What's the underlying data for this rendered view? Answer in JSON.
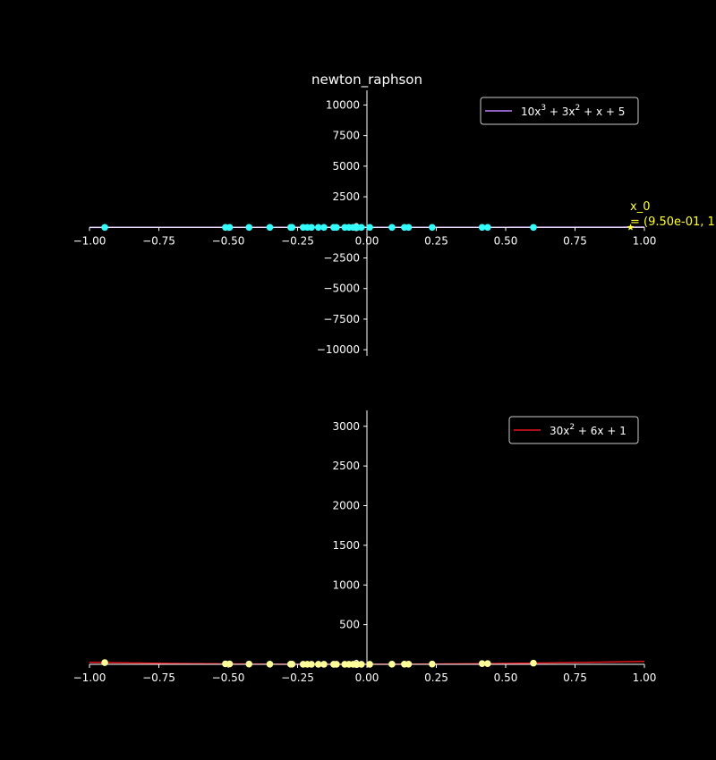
{
  "figure": {
    "title": "newton_raphson",
    "background": "#000000",
    "axis_color": "#ffffff"
  },
  "chart_data": [
    {
      "type": "line",
      "title": "newton_raphson",
      "xlabel": "",
      "ylabel": "",
      "xlim": [
        -1.0,
        1.0
      ],
      "ylim": [
        -10500,
        11200
      ],
      "x_ticks": [
        "−1.00",
        "−0.75",
        "−0.50",
        "−0.25",
        "0.00",
        "0.25",
        "0.50",
        "0.75",
        "1.00"
      ],
      "x_tick_values": [
        -1.0,
        -0.75,
        -0.5,
        -0.25,
        0.0,
        0.25,
        0.5,
        0.75,
        1.0
      ],
      "y_ticks": [
        "−10000",
        "−7500",
        "−5000",
        "−2500",
        "0",
        "2500",
        "5000",
        "7500",
        "10000"
      ],
      "y_tick_values": [
        -10000,
        -7500,
        -5000,
        -2500,
        0,
        2500,
        5000,
        7500,
        10000
      ],
      "legend": {
        "position": "top-right",
        "label_main": "10x",
        "label_tail": " + 3x",
        "label_end": " + x + 5",
        "sup": "3",
        "sup2": "2"
      },
      "series": [
        {
          "name": "10x^3 + 3x^2 + x + 5",
          "color": "#bf80ff",
          "coefficients": [
            10,
            3,
            1,
            5
          ]
        }
      ],
      "iterates": {
        "color": "#33ffff",
        "x": [
          -0.945,
          -0.51,
          -0.495,
          -0.425,
          -0.35,
          -0.275,
          -0.27,
          -0.23,
          -0.215,
          -0.2,
          -0.175,
          -0.155,
          -0.12,
          -0.11,
          -0.08,
          -0.065,
          -0.05,
          -0.035,
          -0.02,
          0.01,
          0.09,
          0.135,
          0.15,
          0.235,
          0.415,
          0.435,
          0.6
        ],
        "y": 0
      },
      "annotation": {
        "marker_x": 0.95,
        "marker_y": 0,
        "line1": "x_0",
        "line2": "= (9.50e-01, 1",
        "color": "#ffff33"
      }
    },
    {
      "type": "line",
      "title": "",
      "xlabel": "",
      "ylabel": "",
      "xlim": [
        -1.0,
        1.0
      ],
      "ylim": [
        0,
        3200
      ],
      "x_ticks": [
        "−1.00",
        "−0.75",
        "−0.50",
        "−0.25",
        "0.00",
        "0.25",
        "0.50",
        "0.75",
        "1.00"
      ],
      "x_tick_values": [
        -1.0,
        -0.75,
        -0.5,
        -0.25,
        0.0,
        0.25,
        0.5,
        0.75,
        1.0
      ],
      "y_ticks": [
        "0",
        "500",
        "1000",
        "1500",
        "2000",
        "2500",
        "3000"
      ],
      "y_tick_values": [
        0,
        500,
        1000,
        1500,
        2000,
        2500,
        3000
      ],
      "legend": {
        "position": "top-right",
        "label_main": "30x",
        "label_tail": " + 6x + 1",
        "sup": "2"
      },
      "series": [
        {
          "name": "30x^2 + 6x + 1",
          "color": "#e8141e",
          "coefficients": [
            30,
            6,
            1
          ]
        }
      ],
      "iterates": {
        "color": "#ffff99",
        "x": [
          -0.945,
          -0.51,
          -0.495,
          -0.425,
          -0.35,
          -0.275,
          -0.27,
          -0.23,
          -0.215,
          -0.2,
          -0.175,
          -0.155,
          -0.12,
          -0.11,
          -0.08,
          -0.065,
          -0.05,
          -0.035,
          -0.02,
          0.01,
          0.09,
          0.135,
          0.15,
          0.235,
          0.415,
          0.435,
          0.6
        ]
      }
    }
  ]
}
